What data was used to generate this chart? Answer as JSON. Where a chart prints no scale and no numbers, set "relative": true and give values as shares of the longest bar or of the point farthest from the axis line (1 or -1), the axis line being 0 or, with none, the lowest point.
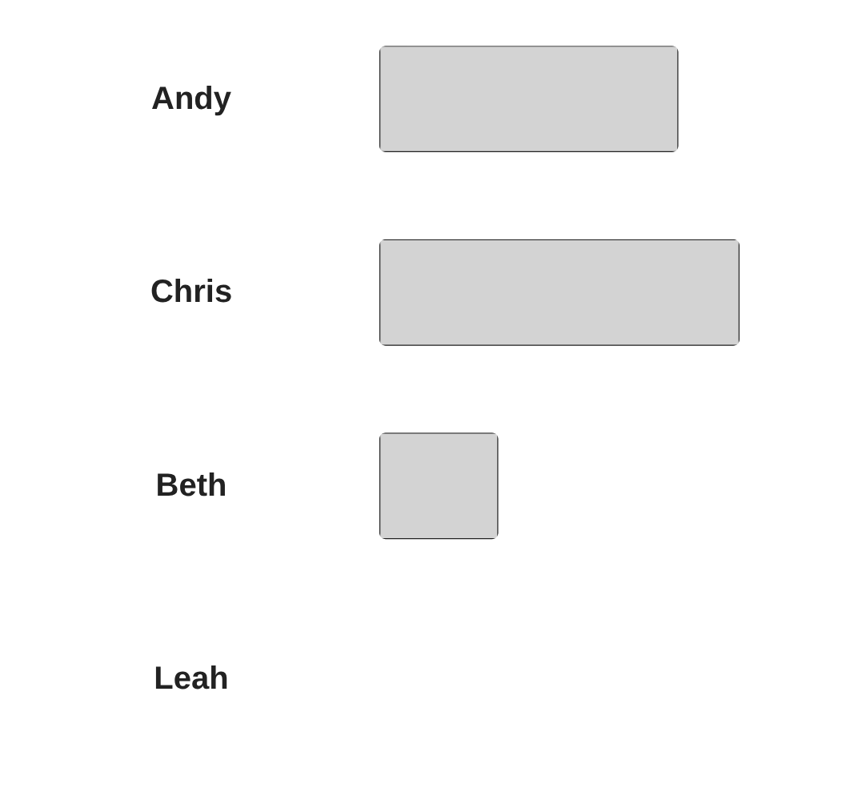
{
  "chart_data": {
    "type": "bar",
    "orientation": "horizontal",
    "relative": true,
    "categories": [
      "Andy",
      "Chris",
      "Beth",
      "Leah"
    ],
    "values": [
      0.83,
      1,
      0.33,
      0
    ],
    "color": "#d3d3d3"
  }
}
